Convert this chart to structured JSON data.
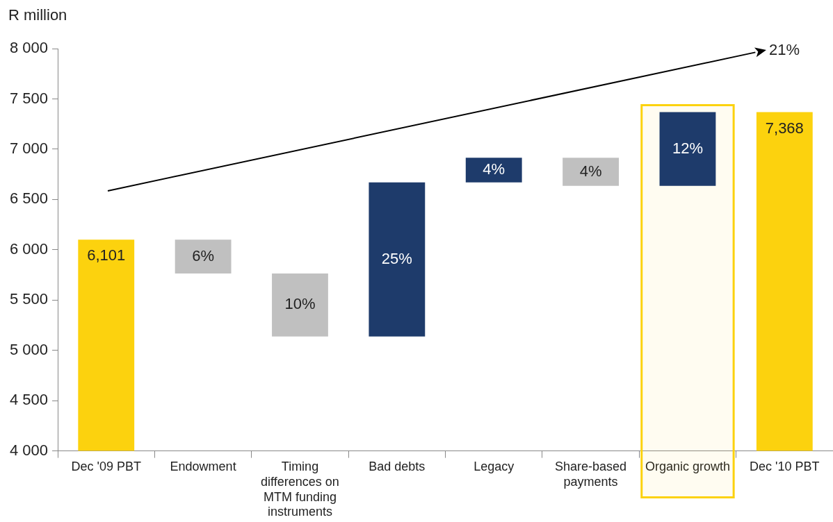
{
  "chart_data": {
    "type": "bar",
    "ylabel": "R million",
    "categories": [
      "Dec '09 PBT",
      "Endowment",
      "Timing differences on MTM funding instruments",
      "Bad debts",
      "Legacy",
      "Share-based payments",
      "Organic growth",
      "Dec '10 PBT"
    ],
    "base": [
      null,
      6101,
      5764,
      5137,
      6670,
      6915,
      6635,
      null
    ],
    "values": [
      6101,
      -337,
      -627,
      1533,
      245,
      -280,
      733,
      7368
    ],
    "colors": [
      "#fcd20e",
      "#c0c0c0",
      "#c0c0c0",
      "#1e3b6b",
      "#1e3b6b",
      "#c0c0c0",
      "#1e3b6b",
      "#fcd20e"
    ],
    "value_labels": [
      "6,101",
      null,
      null,
      null,
      null,
      null,
      null,
      "7,368"
    ],
    "ylim": [
      4000,
      8000
    ],
    "yticks": [
      {
        "value": 4000,
        "label": "4 000"
      },
      {
        "value": 4500,
        "label": "4 500"
      },
      {
        "value": 5000,
        "label": "5 000"
      },
      {
        "value": 5500,
        "label": "5 500"
      },
      {
        "value": 6000,
        "label": "6 000"
      },
      {
        "value": 6500,
        "label": "6 500"
      },
      {
        "value": 7000,
        "label": "7 000"
      },
      {
        "value": 7500,
        "label": "7 500"
      },
      {
        "value": 8000,
        "label": "8 000"
      }
    ],
    "bands": [
      {
        "axis": "x",
        "from": "Organic growth",
        "to": "Organic growth",
        "color": "#fcd20e"
      }
    ],
    "annotations": [
      "21%",
      "6%",
      "10%",
      "25%",
      "4%",
      "4%",
      "12%"
    ],
    "grid": false,
    "legend": false
  }
}
